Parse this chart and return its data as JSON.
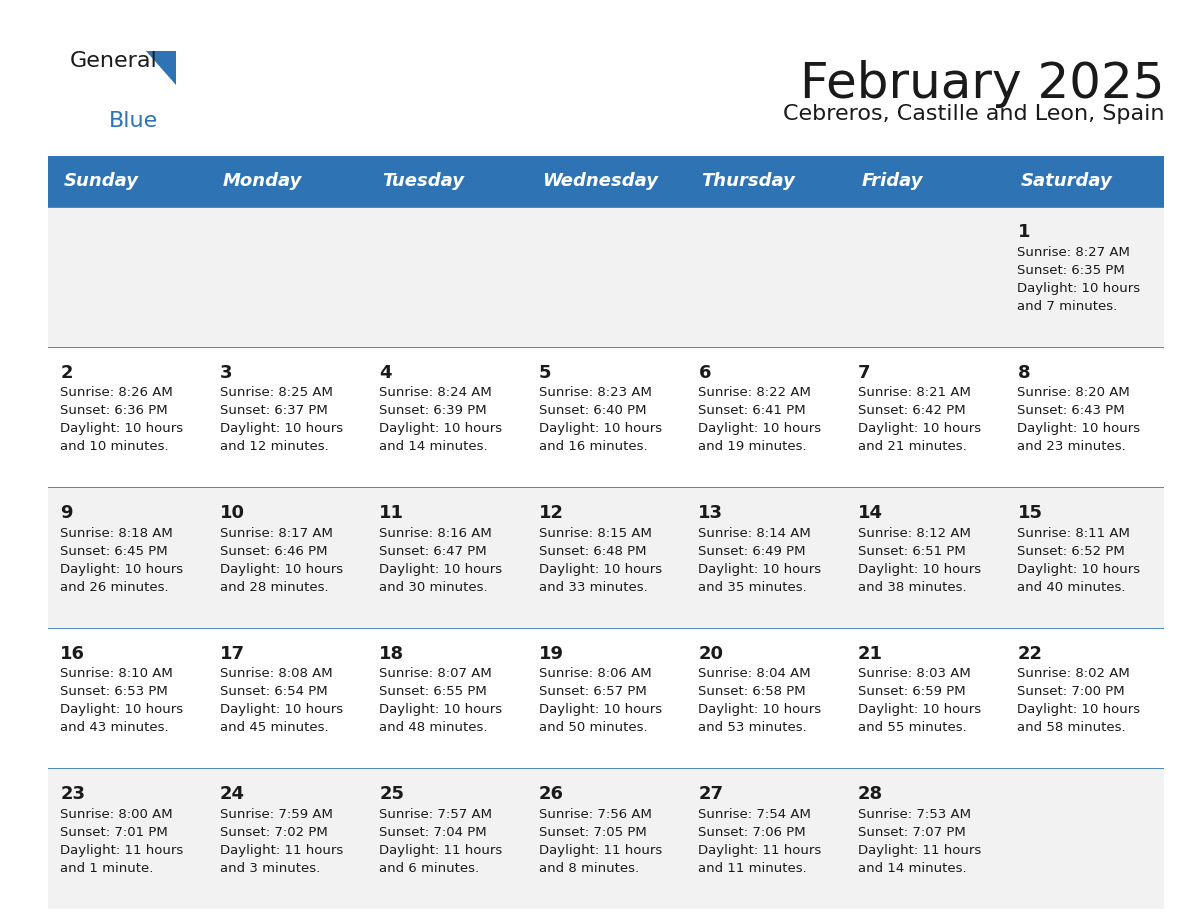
{
  "title": "February 2025",
  "subtitle": "Cebreros, Castille and Leon, Spain",
  "header_bg": "#2E74B5",
  "header_text": "#FFFFFF",
  "row_bg_even": "#F2F2F2",
  "row_bg_odd": "#FFFFFF",
  "separator_color": "#2E74B5",
  "day_headers": [
    "Sunday",
    "Monday",
    "Tuesday",
    "Wednesday",
    "Thursday",
    "Friday",
    "Saturday"
  ],
  "calendar_data": [
    [
      {
        "day": null,
        "info": null
      },
      {
        "day": null,
        "info": null
      },
      {
        "day": null,
        "info": null
      },
      {
        "day": null,
        "info": null
      },
      {
        "day": null,
        "info": null
      },
      {
        "day": null,
        "info": null
      },
      {
        "day": 1,
        "info": "Sunrise: 8:27 AM\nSunset: 6:35 PM\nDaylight: 10 hours\nand 7 minutes."
      }
    ],
    [
      {
        "day": 2,
        "info": "Sunrise: 8:26 AM\nSunset: 6:36 PM\nDaylight: 10 hours\nand 10 minutes."
      },
      {
        "day": 3,
        "info": "Sunrise: 8:25 AM\nSunset: 6:37 PM\nDaylight: 10 hours\nand 12 minutes."
      },
      {
        "day": 4,
        "info": "Sunrise: 8:24 AM\nSunset: 6:39 PM\nDaylight: 10 hours\nand 14 minutes."
      },
      {
        "day": 5,
        "info": "Sunrise: 8:23 AM\nSunset: 6:40 PM\nDaylight: 10 hours\nand 16 minutes."
      },
      {
        "day": 6,
        "info": "Sunrise: 8:22 AM\nSunset: 6:41 PM\nDaylight: 10 hours\nand 19 minutes."
      },
      {
        "day": 7,
        "info": "Sunrise: 8:21 AM\nSunset: 6:42 PM\nDaylight: 10 hours\nand 21 minutes."
      },
      {
        "day": 8,
        "info": "Sunrise: 8:20 AM\nSunset: 6:43 PM\nDaylight: 10 hours\nand 23 minutes."
      }
    ],
    [
      {
        "day": 9,
        "info": "Sunrise: 8:18 AM\nSunset: 6:45 PM\nDaylight: 10 hours\nand 26 minutes."
      },
      {
        "day": 10,
        "info": "Sunrise: 8:17 AM\nSunset: 6:46 PM\nDaylight: 10 hours\nand 28 minutes."
      },
      {
        "day": 11,
        "info": "Sunrise: 8:16 AM\nSunset: 6:47 PM\nDaylight: 10 hours\nand 30 minutes."
      },
      {
        "day": 12,
        "info": "Sunrise: 8:15 AM\nSunset: 6:48 PM\nDaylight: 10 hours\nand 33 minutes."
      },
      {
        "day": 13,
        "info": "Sunrise: 8:14 AM\nSunset: 6:49 PM\nDaylight: 10 hours\nand 35 minutes."
      },
      {
        "day": 14,
        "info": "Sunrise: 8:12 AM\nSunset: 6:51 PM\nDaylight: 10 hours\nand 38 minutes."
      },
      {
        "day": 15,
        "info": "Sunrise: 8:11 AM\nSunset: 6:52 PM\nDaylight: 10 hours\nand 40 minutes."
      }
    ],
    [
      {
        "day": 16,
        "info": "Sunrise: 8:10 AM\nSunset: 6:53 PM\nDaylight: 10 hours\nand 43 minutes."
      },
      {
        "day": 17,
        "info": "Sunrise: 8:08 AM\nSunset: 6:54 PM\nDaylight: 10 hours\nand 45 minutes."
      },
      {
        "day": 18,
        "info": "Sunrise: 8:07 AM\nSunset: 6:55 PM\nDaylight: 10 hours\nand 48 minutes."
      },
      {
        "day": 19,
        "info": "Sunrise: 8:06 AM\nSunset: 6:57 PM\nDaylight: 10 hours\nand 50 minutes."
      },
      {
        "day": 20,
        "info": "Sunrise: 8:04 AM\nSunset: 6:58 PM\nDaylight: 10 hours\nand 53 minutes."
      },
      {
        "day": 21,
        "info": "Sunrise: 8:03 AM\nSunset: 6:59 PM\nDaylight: 10 hours\nand 55 minutes."
      },
      {
        "day": 22,
        "info": "Sunrise: 8:02 AM\nSunset: 7:00 PM\nDaylight: 10 hours\nand 58 minutes."
      }
    ],
    [
      {
        "day": 23,
        "info": "Sunrise: 8:00 AM\nSunset: 7:01 PM\nDaylight: 11 hours\nand 1 minute."
      },
      {
        "day": 24,
        "info": "Sunrise: 7:59 AM\nSunset: 7:02 PM\nDaylight: 11 hours\nand 3 minutes."
      },
      {
        "day": 25,
        "info": "Sunrise: 7:57 AM\nSunset: 7:04 PM\nDaylight: 11 hours\nand 6 minutes."
      },
      {
        "day": 26,
        "info": "Sunrise: 7:56 AM\nSunset: 7:05 PM\nDaylight: 11 hours\nand 8 minutes."
      },
      {
        "day": 27,
        "info": "Sunrise: 7:54 AM\nSunset: 7:06 PM\nDaylight: 11 hours\nand 11 minutes."
      },
      {
        "day": 28,
        "info": "Sunrise: 7:53 AM\nSunset: 7:07 PM\nDaylight: 11 hours\nand 14 minutes."
      },
      {
        "day": null,
        "info": null
      }
    ]
  ],
  "logo_text_general": "General",
  "logo_text_blue": "Blue",
  "title_fontsize": 36,
  "subtitle_fontsize": 16,
  "header_fontsize": 13,
  "day_num_fontsize": 13,
  "info_fontsize": 9.5
}
